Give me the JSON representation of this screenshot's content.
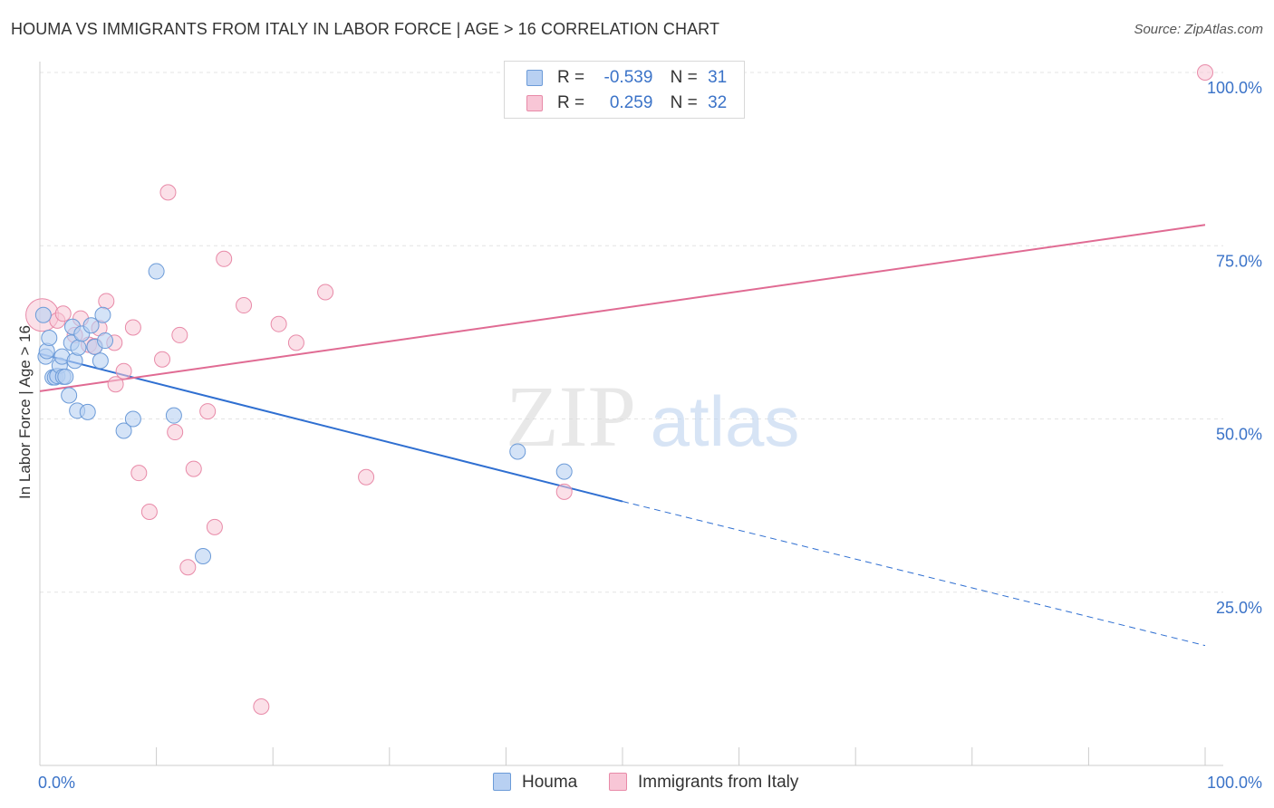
{
  "title": "HOUMA VS IMMIGRANTS FROM ITALY IN LABOR FORCE | AGE > 16 CORRELATION CHART",
  "source": "Source: ZipAtlas.com",
  "watermark": {
    "zip": "ZIP",
    "atlas": "atlas"
  },
  "legend": {
    "houma": {
      "r_label": "R =",
      "r_value": "-0.539",
      "n_label": "N =",
      "n_value": "31"
    },
    "italy": {
      "r_label": "R =",
      "r_value": "0.259",
      "n_label": "N =",
      "n_value": "32"
    }
  },
  "colors": {
    "houma_fill": "#b8d0f2",
    "houma_stroke": "#6c9bd8",
    "houma_line": "#2f6fd1",
    "italy_fill": "#f8c6d6",
    "italy_stroke": "#e88aa8",
    "italy_line": "#e06b93",
    "tick_label": "#3b73c8",
    "grid": "#e4e4e4"
  },
  "chart_data": {
    "type": "scatter",
    "title": "HOUMA VS IMMIGRANTS FROM ITALY IN LABOR FORCE | AGE > 16 CORRELATION CHART",
    "xlabel": "",
    "ylabel": "In Labor Force | Age > 16",
    "xlim": [
      0,
      100
    ],
    "ylim": [
      0,
      105
    ],
    "x_tick_labels": [
      "0.0%",
      "100.0%"
    ],
    "y_ticks": [
      25,
      50,
      75,
      100
    ],
    "y_tick_labels": [
      "25.0%",
      "50.0%",
      "75.0%",
      "100.0%"
    ],
    "grid": true,
    "series": [
      {
        "name": "Houma",
        "points": [
          [
            0.3,
            65.0
          ],
          [
            0.5,
            59.0
          ],
          [
            0.6,
            59.8
          ],
          [
            0.8,
            61.7
          ],
          [
            1.1,
            56.0
          ],
          [
            1.3,
            56.0
          ],
          [
            1.5,
            56.2
          ],
          [
            1.7,
            57.7
          ],
          [
            1.9,
            59.0
          ],
          [
            2.0,
            56.1
          ],
          [
            2.2,
            56.1
          ],
          [
            2.5,
            53.4
          ],
          [
            2.7,
            61.0
          ],
          [
            2.8,
            63.3
          ],
          [
            3.0,
            58.4
          ],
          [
            3.2,
            51.2
          ],
          [
            3.3,
            60.3
          ],
          [
            3.6,
            62.3
          ],
          [
            4.1,
            51.0
          ],
          [
            4.4,
            63.5
          ],
          [
            4.7,
            60.4
          ],
          [
            5.2,
            58.4
          ],
          [
            5.4,
            65.0
          ],
          [
            5.6,
            61.3
          ],
          [
            7.2,
            48.3
          ],
          [
            8.0,
            50.0
          ],
          [
            10.0,
            71.3
          ],
          [
            11.5,
            50.5
          ],
          [
            14.0,
            30.2
          ],
          [
            41.0,
            45.3
          ],
          [
            45.0,
            42.4
          ]
        ],
        "trendline": {
          "x": [
            0,
            50
          ],
          "y": [
            59.4,
            38.1
          ],
          "dashed_extension": {
            "x": [
              50,
              100
            ],
            "y": [
              38.1,
              17.3
            ]
          }
        }
      },
      {
        "name": "Immigrants from Italy",
        "points": [
          [
            0.2,
            65.0
          ],
          [
            1.5,
            64.2
          ],
          [
            2.0,
            65.2
          ],
          [
            3.0,
            62.1
          ],
          [
            3.5,
            64.5
          ],
          [
            4.2,
            60.7
          ],
          [
            4.7,
            60.5
          ],
          [
            5.1,
            63.1
          ],
          [
            5.7,
            67.0
          ],
          [
            6.4,
            61.0
          ],
          [
            6.5,
            55.0
          ],
          [
            7.2,
            56.9
          ],
          [
            8.0,
            63.2
          ],
          [
            8.5,
            42.2
          ],
          [
            9.4,
            36.6
          ],
          [
            10.5,
            58.6
          ],
          [
            11.0,
            82.7
          ],
          [
            11.6,
            48.1
          ],
          [
            12.0,
            62.1
          ],
          [
            12.7,
            28.6
          ],
          [
            13.2,
            42.8
          ],
          [
            14.4,
            51.1
          ],
          [
            15.0,
            34.4
          ],
          [
            15.8,
            73.1
          ],
          [
            17.5,
            66.4
          ],
          [
            19.0,
            8.5
          ],
          [
            20.5,
            63.7
          ],
          [
            22.0,
            61.0
          ],
          [
            24.5,
            68.3
          ],
          [
            28.0,
            41.6
          ],
          [
            45.0,
            39.5
          ],
          [
            100.0,
            100.0
          ]
        ],
        "trendline": {
          "x": [
            0,
            100
          ],
          "y": [
            54.0,
            78.0
          ]
        }
      }
    ]
  },
  "bottom_legend": {
    "houma": "Houma",
    "italy": "Immigrants from Italy"
  }
}
